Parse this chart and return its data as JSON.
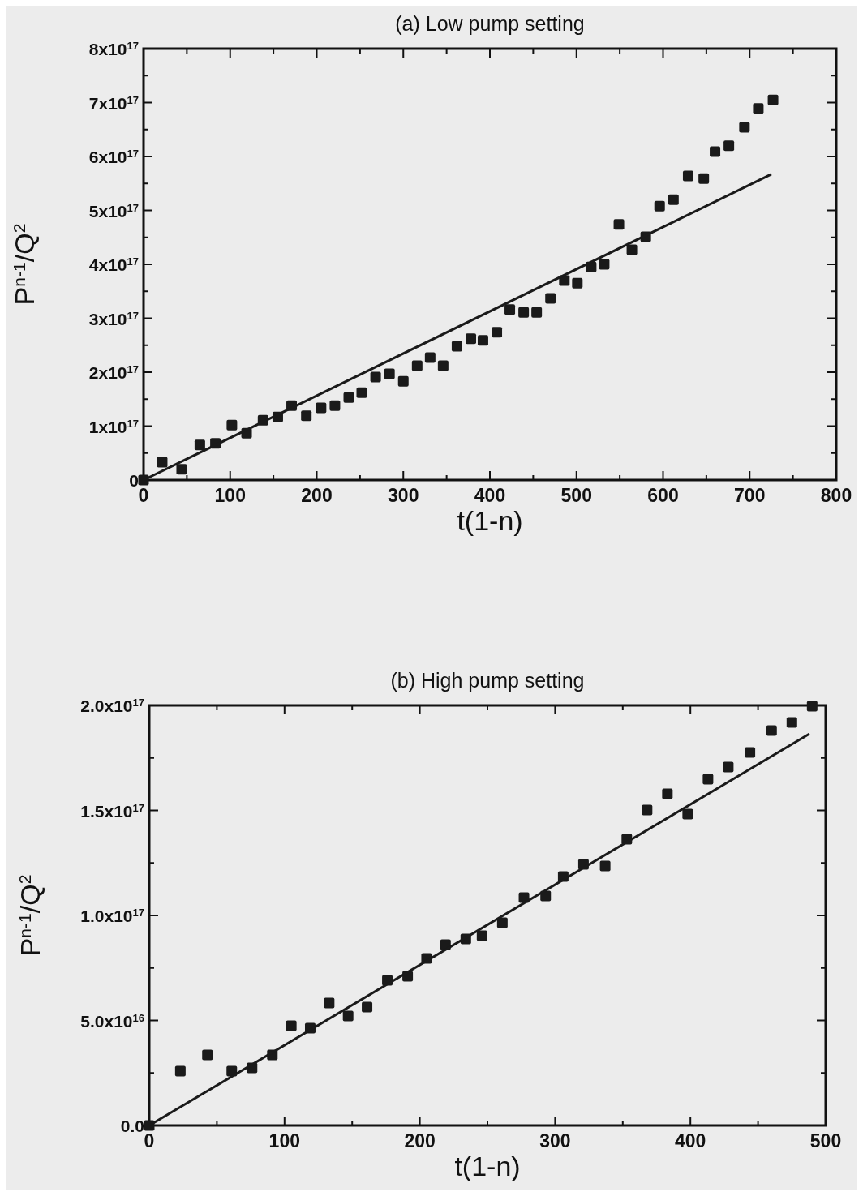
{
  "chart_data": [
    {
      "type": "scatter",
      "title": "(a) Low pump setting",
      "xlabel": "t(1-n)",
      "ylabel": "P$^{n-1}$/Q$^{2}$",
      "xlim": [
        0,
        800
      ],
      "xticks": [
        0,
        {
          "value": 50,
          "label": null
        },
        100,
        {
          "value": 150,
          "label": null
        },
        200,
        {
          "value": 250,
          "label": null
        },
        300,
        {
          "value": 350,
          "label": null
        },
        400,
        {
          "value": 450,
          "label": null
        },
        500,
        {
          "value": 550,
          "label": null
        },
        600,
        {
          "value": 650,
          "label": null
        },
        700,
        {
          "value": 750,
          "label": null
        },
        800
      ],
      "ylim": [
        0,
        8e+17
      ],
      "yticks": [
        0,
        {
          "value": 5e+16,
          "label": null
        },
        {
          "value": 1e+17,
          "label": "1x10$^{17}$"
        },
        {
          "value": 1.5e+17,
          "label": null
        },
        {
          "value": 2e+17,
          "label": "2x10$^{17}$"
        },
        {
          "value": 2.5e+17,
          "label": null
        },
        {
          "value": 3e+17,
          "label": "3x10$^{17}$"
        },
        {
          "value": 3.5e+17,
          "label": null
        },
        {
          "value": 4e+17,
          "label": "4x10$^{17}$"
        },
        {
          "value": 4.5e+17,
          "label": null
        },
        {
          "value": 5e+17,
          "label": "5x10$^{17}$"
        },
        {
          "value": 5.5e+17,
          "label": null
        },
        {
          "value": 6e+17,
          "label": "6x10$^{17}$"
        },
        {
          "value": 6.5e+17,
          "label": null
        },
        {
          "value": 7e+17,
          "label": "7x10$^{17}$"
        },
        {
          "value": 7.5e+17,
          "label": null
        },
        {
          "value": 8e+17,
          "label": "8x10$^{17}$"
        }
      ],
      "series": [
        {
          "marker": "square",
          "color": "#1a1a1a",
          "x": [
            0,
            21.5,
            44,
            65,
            83,
            102,
            119,
            138,
            155,
            171,
            188,
            205,
            221,
            237,
            252,
            268,
            284,
            300,
            316,
            331,
            346,
            362,
            378,
            392,
            408,
            423,
            439,
            454,
            470,
            486,
            501,
            517,
            532,
            549,
            564,
            580,
            596,
            612,
            629,
            647,
            660,
            676,
            694,
            710,
            727
          ],
          "values": [
            0,
            3.3e+16,
            2e+16,
            6.5e+16,
            6.8e+16,
            1.02e+17,
            8.7e+16,
            1.11e+17,
            1.17e+17,
            1.38e+17,
            1.19e+17,
            1.34e+17,
            1.38e+17,
            1.53e+17,
            1.62e+17,
            1.91e+17,
            1.97e+17,
            1.83e+17,
            2.12e+17,
            2.27e+17,
            2.12e+17,
            2.48e+17,
            2.62e+17,
            2.59e+17,
            2.74e+17,
            3.16e+17,
            3.11e+17,
            3.11e+17,
            3.37e+17,
            3.7e+17,
            3.65e+17,
            3.95e+17,
            4e+17,
            4.74e+17,
            4.27e+17,
            4.51e+17,
            5.08e+17,
            5.2e+17,
            5.64e+17,
            5.59e+17,
            6.09e+17,
            6.2e+17,
            6.54e+17,
            6.89e+17,
            7.05e+17
          ]
        },
        {
          "type": "line",
          "color": "#1a1a1a",
          "x": [
            0,
            725
          ],
          "values": [
            0,
            5.67e+17
          ]
        }
      ]
    },
    {
      "type": "scatter",
      "title": "(b) High pump setting",
      "xlabel": "t(1-n)",
      "ylabel": "P$^{n-1}$/Q$^{2}$",
      "xlim": [
        0,
        500
      ],
      "xticks": [
        0,
        {
          "value": 50,
          "label": null
        },
        100,
        {
          "value": 150,
          "label": null
        },
        200,
        {
          "value": 250,
          "label": null
        },
        300,
        {
          "value": 350,
          "label": null
        },
        400,
        {
          "value": 450,
          "label": null
        },
        500
      ],
      "ylim": [
        0,
        2e+17
      ],
      "yticks": [
        {
          "value": 0,
          "label": "0.0"
        },
        {
          "value": 2.5e+16,
          "label": null
        },
        {
          "value": 5e+16,
          "label": "5.0x10$^{16}$"
        },
        {
          "value": 7.5e+16,
          "label": null
        },
        {
          "value": 1e+17,
          "label": "1.0x10$^{17}$"
        },
        {
          "value": 1.25e+17,
          "label": null
        },
        {
          "value": 1.5e+17,
          "label": "1.5x10$^{17}$"
        },
        {
          "value": 1.75e+17,
          "label": null
        },
        {
          "value": 2e+17,
          "label": "2.0x10$^{17}$"
        }
      ],
      "series": [
        {
          "marker": "square",
          "color": "#1a1a1a",
          "x": [
            0,
            23,
            43,
            61,
            76,
            91,
            105,
            119,
            133,
            147,
            161,
            176,
            191,
            205,
            219,
            234,
            246,
            261,
            277,
            293,
            306,
            321,
            337,
            353,
            368,
            383,
            398,
            413,
            428,
            444,
            460,
            475,
            490
          ],
          "values": [
            0,
            2.59e+16,
            3.36e+16,
            2.59e+16,
            2.74e+16,
            3.36e+16,
            4.75e+16,
            4.63e+16,
            5.83e+16,
            5.21e+16,
            5.64e+16,
            6.91e+16,
            7.1e+16,
            7.95e+16,
            8.61e+16,
            8.88e+16,
            9.03e+16,
            9.65e+16,
            1.085e+17,
            1.093e+17,
            1.185e+17,
            1.243e+17,
            1.236e+17,
            1.363e+17,
            1.502e+17,
            1.579e+17,
            1.483e+17,
            1.649e+17,
            1.707e+17,
            1.776e+17,
            1.88e+17,
            1.919e+17,
            1.996e+17
          ]
        },
        {
          "type": "line",
          "color": "#1a1a1a",
          "x": [
            0,
            488
          ],
          "values": [
            0,
            1.865e+17
          ]
        }
      ]
    }
  ]
}
